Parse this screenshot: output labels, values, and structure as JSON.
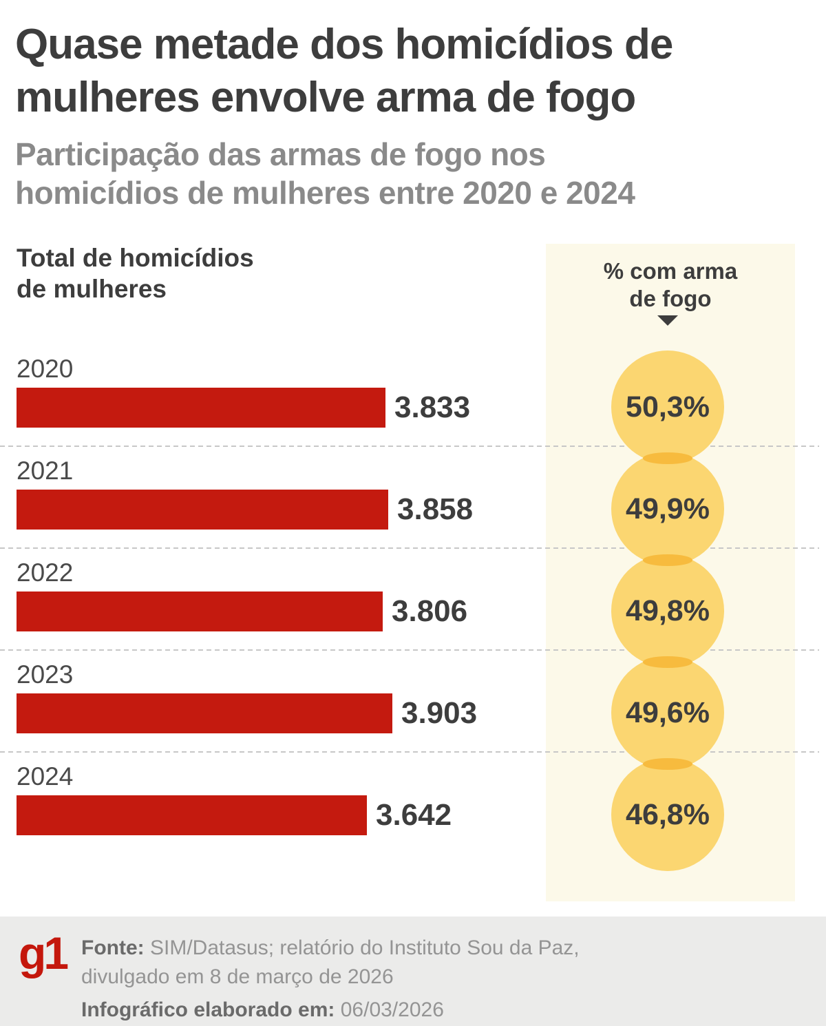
{
  "header": {
    "title_lines": [
      "Quase metade dos homicídios de",
      "mulheres envolve arma de fogo"
    ],
    "subtitle_lines": [
      "Participação das armas de fogo nos",
      "homicídios de mulheres entre 2020 e 2024"
    ]
  },
  "chart": {
    "left_label_lines": [
      "Total de homicídios",
      "de mulheres"
    ],
    "right_header_lines": [
      "% com arma",
      "de fogo"
    ]
  },
  "chart_data": {
    "type": "bar",
    "orientation": "horizontal",
    "title": "Quase metade dos homicídios de mulheres envolve arma de fogo",
    "subtitle": "Participação das armas de fogo nos homicídios de mulheres entre 2020 e 2024",
    "categories": [
      "2020",
      "2021",
      "2022",
      "2023",
      "2024"
    ],
    "series": [
      {
        "name": "Total de homicídios de mulheres",
        "values": [
          3833,
          3858,
          3806,
          3903,
          3642
        ],
        "labels": [
          "3.833",
          "3.858",
          "3.806",
          "3.903",
          "3.642"
        ]
      },
      {
        "name": "% com arma de fogo",
        "values": [
          50.3,
          49.9,
          49.8,
          49.6,
          46.8
        ],
        "labels": [
          "50,3%",
          "49,9%",
          "49,8%",
          "49,6%",
          "46,8%"
        ]
      }
    ],
    "xlim": [
      0,
      3903
    ],
    "grid": "dashed-row-separators",
    "legend_position": "none"
  },
  "footer": {
    "logo_text": "g1",
    "source_label": "Fonte:",
    "source_line1": "SIM/Datasus; relatório do Instituto Sou da Paz,",
    "source_line2": "divulgado em 8 de março de 2026",
    "credit_label": "Infográfico elaborado em:",
    "credit_value": "06/03/2026"
  },
  "colors": {
    "bar_red": "#c41a0f",
    "circle_yellow": "#fbd671",
    "circle_overlap_orange": "#f7bb3e",
    "strip_background": "#fcf9e9",
    "title_dark": "#3d3d3d",
    "subtitle_gray": "#8a8a8a",
    "year_gray": "#4a4a4a",
    "separator_gray": "#c7c7c7",
    "footer_background": "#ebebea",
    "logo_red": "#c4170c"
  }
}
